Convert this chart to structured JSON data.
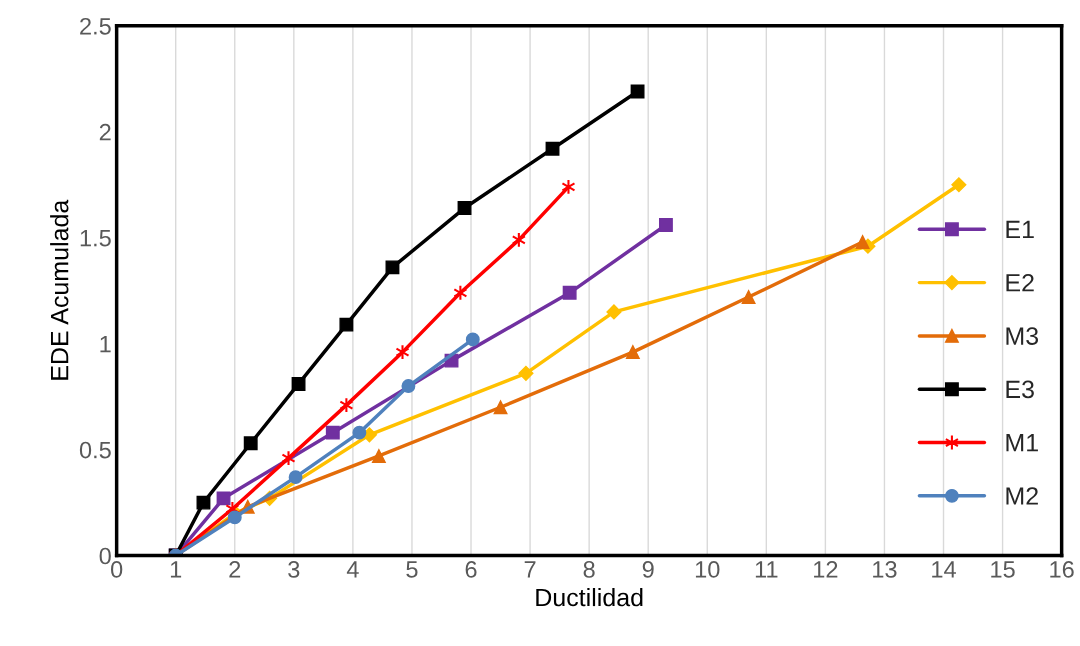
{
  "chart_data": {
    "type": "line",
    "xlabel": "Ductilidad",
    "ylabel": "EDE Acumulada",
    "xlim": [
      0,
      16
    ],
    "xticks": [
      0,
      1,
      2,
      3,
      4,
      5,
      6,
      7,
      8,
      9,
      10,
      11,
      12,
      13,
      14,
      15,
      16
    ],
    "ylim": [
      0,
      2.5
    ],
    "yticks": [
      0,
      0.5,
      1,
      1.5,
      2,
      2.5
    ],
    "grid": "x",
    "legend": "right",
    "series": [
      {
        "name": "E1",
        "color": "#7030a0",
        "marker": "square",
        "x": [
          1,
          1.81,
          3.66,
          5.67,
          7.67,
          9.3
        ],
        "values": [
          0,
          0.27,
          0.58,
          0.92,
          1.24,
          1.56
        ]
      },
      {
        "name": "E2",
        "color": "#ffc000",
        "marker": "diamond",
        "x": [
          1,
          2.01,
          2.59,
          4.28,
          6.93,
          8.42,
          12.72,
          14.26
        ],
        "values": [
          0,
          0.2,
          0.27,
          0.57,
          0.86,
          1.15,
          1.46,
          1.75
        ]
      },
      {
        "name": "M3",
        "color": "#e36c09",
        "marker": "triangle",
        "x": [
          1,
          2.22,
          4.44,
          6.5,
          8.74,
          10.7,
          12.63
        ],
        "values": [
          0,
          0.23,
          0.47,
          0.7,
          0.96,
          1.22,
          1.48
        ]
      },
      {
        "name": "E3",
        "color": "#000000",
        "marker": "square",
        "x": [
          1,
          1.47,
          2.27,
          3.08,
          3.89,
          4.67,
          5.89,
          7.38,
          8.82
        ],
        "values": [
          0,
          0.25,
          0.53,
          0.81,
          1.09,
          1.36,
          1.64,
          1.92,
          2.19
        ]
      },
      {
        "name": "M1",
        "color": "#ff0000",
        "marker": "cross",
        "x": [
          1,
          1.96,
          2.91,
          3.89,
          4.84,
          5.82,
          6.81,
          7.65
        ],
        "values": [
          0,
          0.22,
          0.46,
          0.71,
          0.96,
          1.24,
          1.49,
          1.74
        ]
      },
      {
        "name": "M2",
        "color": "#4f81bd",
        "marker": "circle",
        "x": [
          1,
          2.0,
          3.03,
          4.11,
          4.94,
          6.03
        ],
        "values": [
          0,
          0.18,
          0.37,
          0.58,
          0.8,
          1.02
        ]
      }
    ]
  }
}
